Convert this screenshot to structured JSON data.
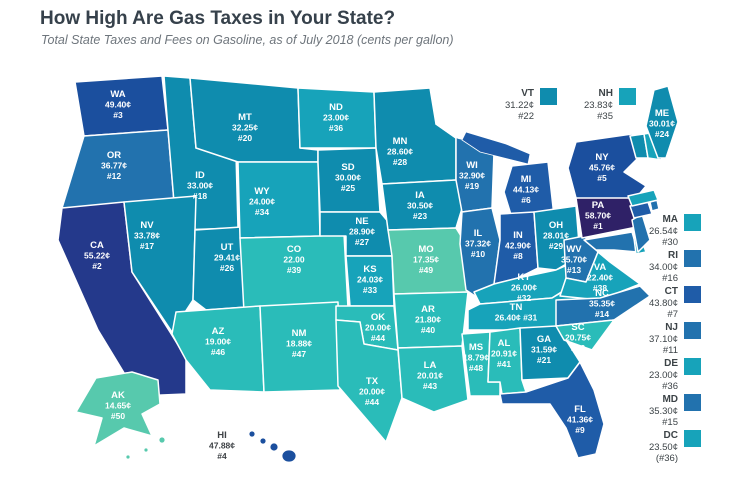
{
  "header": {
    "title": "How High Are Gas Taxes in Your State?",
    "subtitle": "Total State Taxes and Fees on Gasoline, as of July 2018 (cents per gallon)"
  },
  "map": {
    "description": "US choropleth of state gas taxes, darker blue = higher tax",
    "palette": {
      "highest": "#2f2167",
      "very_high": "#24398b",
      "high": "#1b4f9e",
      "high_mid": "#1f5ca8",
      "mid_blue": "#2272ae",
      "teal_blue": "#0f8cae",
      "teal": "#17a3ba",
      "turquoise": "#2abcb9",
      "mint": "#57c9ad"
    },
    "states": [
      {
        "abbr": "WA",
        "value": "49.40¢",
        "rank": "#3",
        "fill": "#1b4f9e",
        "placement": "map",
        "text": "light"
      },
      {
        "abbr": "OR",
        "value": "36.77¢",
        "rank": "#12",
        "fill": "#2272ae",
        "placement": "map",
        "text": "light"
      },
      {
        "abbr": "CA",
        "value": "55.22¢",
        "rank": "#2",
        "fill": "#24398b",
        "placement": "map",
        "text": "light"
      },
      {
        "abbr": "NV",
        "value": "33.78¢",
        "rank": "#17",
        "fill": "#0f8cae",
        "placement": "map",
        "text": "light"
      },
      {
        "abbr": "ID",
        "value": "33.00¢",
        "rank": "#18",
        "fill": "#0f8cae",
        "placement": "map",
        "text": "light"
      },
      {
        "abbr": "MT",
        "value": "32.25¢",
        "rank": "#20",
        "fill": "#0f8cae",
        "placement": "map",
        "text": "light"
      },
      {
        "abbr": "WY",
        "value": "24.00¢",
        "rank": "#34",
        "fill": "#17a3ba",
        "placement": "map",
        "text": "light"
      },
      {
        "abbr": "UT",
        "value": "29.41¢",
        "rank": "#26",
        "fill": "#0f8cae",
        "placement": "map",
        "text": "light"
      },
      {
        "abbr": "CO",
        "value": "22.00",
        "rank": "#39",
        "fill": "#2abcb9",
        "placement": "map",
        "text": "light"
      },
      {
        "abbr": "AZ",
        "value": "19.00¢",
        "rank": "#46",
        "fill": "#2abcb9",
        "placement": "map",
        "text": "light"
      },
      {
        "abbr": "NM",
        "value": "18.88¢",
        "rank": "#47",
        "fill": "#2abcb9",
        "placement": "map",
        "text": "light"
      },
      {
        "abbr": "AK",
        "value": "14.65¢",
        "rank": "#50",
        "fill": "#57c9ad",
        "placement": "map",
        "text": "light"
      },
      {
        "abbr": "HI",
        "value": "47.88¢",
        "rank": "#4",
        "fill": "#1b4f9e",
        "placement": "map",
        "text": "dark"
      },
      {
        "abbr": "ND",
        "value": "23.00¢",
        "rank": "#36",
        "fill": "#17a3ba",
        "placement": "map",
        "text": "light"
      },
      {
        "abbr": "SD",
        "value": "30.00¢",
        "rank": "#25",
        "fill": "#0f8cae",
        "placement": "map",
        "text": "light"
      },
      {
        "abbr": "NE",
        "value": "28.90¢",
        "rank": "#27",
        "fill": "#0f8cae",
        "placement": "map",
        "text": "light"
      },
      {
        "abbr": "KS",
        "value": "24.03¢",
        "rank": "#33",
        "fill": "#17a3ba",
        "placement": "map",
        "text": "light"
      },
      {
        "abbr": "OK",
        "value": "20.00¢",
        "rank": "#44",
        "fill": "#2abcb9",
        "placement": "map",
        "text": "light"
      },
      {
        "abbr": "TX",
        "value": "20.00¢",
        "rank": "#44",
        "fill": "#2abcb9",
        "placement": "map",
        "text": "light"
      },
      {
        "abbr": "MN",
        "value": "28.60¢",
        "rank": "#28",
        "fill": "#0f8cae",
        "placement": "map",
        "text": "light"
      },
      {
        "abbr": "IA",
        "value": "30.50¢",
        "rank": "#23",
        "fill": "#0f8cae",
        "placement": "map",
        "text": "light"
      },
      {
        "abbr": "MO",
        "value": "17.35¢",
        "rank": "#49",
        "fill": "#57c9ad",
        "placement": "map",
        "text": "light"
      },
      {
        "abbr": "AR",
        "value": "21.80¢",
        "rank": "#40",
        "fill": "#2abcb9",
        "placement": "map",
        "text": "light"
      },
      {
        "abbr": "LA",
        "value": "20.01¢",
        "rank": "#43",
        "fill": "#2abcb9",
        "placement": "map",
        "text": "light"
      },
      {
        "abbr": "WI",
        "value": "32.90¢",
        "rank": "#19",
        "fill": "#2272ae",
        "placement": "map",
        "text": "light"
      },
      {
        "abbr": "IL",
        "value": "37.32¢",
        "rank": "#10",
        "fill": "#2272ae",
        "placement": "map",
        "text": "light"
      },
      {
        "abbr": "IN",
        "value": "42.90¢",
        "rank": "#8",
        "fill": "#1f5ca8",
        "placement": "map",
        "text": "light"
      },
      {
        "abbr": "MI",
        "value": "44.13¢",
        "rank": "#6",
        "fill": "#1f5ca8",
        "placement": "map",
        "text": "light"
      },
      {
        "abbr": "OH",
        "value": "28.01¢",
        "rank": "#29",
        "fill": "#0f8cae",
        "placement": "map",
        "text": "light"
      },
      {
        "abbr": "KY",
        "value": "26.00¢",
        "rank": "#32",
        "fill": "#17a3ba",
        "placement": "map",
        "text": "light"
      },
      {
        "abbr": "TN",
        "value": "26.40¢",
        "rank": "#31",
        "fill": "#17a3ba",
        "placement": "map",
        "text": "light",
        "two_line": true
      },
      {
        "abbr": "WV",
        "value": "35.70¢",
        "rank": "#13",
        "fill": "#2272ae",
        "placement": "map",
        "text": "light"
      },
      {
        "abbr": "VA",
        "value": "22.40¢",
        "rank": "#38",
        "fill": "#17a3ba",
        "placement": "map",
        "text": "light"
      },
      {
        "abbr": "NC",
        "value": "35.35¢",
        "rank": "#14",
        "fill": "#2272ae",
        "placement": "map",
        "text": "light"
      },
      {
        "abbr": "SC",
        "value": "20.75¢",
        "rank": "#42",
        "fill": "#2abcb9",
        "placement": "map",
        "text": "light"
      },
      {
        "abbr": "GA",
        "value": "31.59¢",
        "rank": "#21",
        "fill": "#0f8cae",
        "placement": "map",
        "text": "light"
      },
      {
        "abbr": "AL",
        "value": "20.91¢",
        "rank": "#41",
        "fill": "#2abcb9",
        "placement": "map",
        "text": "light"
      },
      {
        "abbr": "MS",
        "value": "18.79¢",
        "rank": "#48",
        "fill": "#2abcb9",
        "placement": "map",
        "text": "light"
      },
      {
        "abbr": "FL",
        "value": "41.36¢",
        "rank": "#9",
        "fill": "#1f5ca8",
        "placement": "map",
        "text": "light"
      },
      {
        "abbr": "PA",
        "value": "58.70¢",
        "rank": "#1",
        "fill": "#2f2167",
        "placement": "map",
        "text": "light"
      },
      {
        "abbr": "NY",
        "value": "45.76¢",
        "rank": "#5",
        "fill": "#1b4f9e",
        "placement": "map",
        "text": "light"
      },
      {
        "abbr": "ME",
        "value": "30.01¢",
        "rank": "#24",
        "fill": "#0f8cae",
        "placement": "map",
        "text": "light"
      },
      {
        "abbr": "VT",
        "value": "31.22¢",
        "rank": "#22",
        "fill": "#0f8cae",
        "placement": "top-legend"
      },
      {
        "abbr": "NH",
        "value": "23.83¢",
        "rank": "#35",
        "fill": "#17a3ba",
        "placement": "top-legend"
      },
      {
        "abbr": "MA",
        "value": "26.54¢",
        "rank": "#30",
        "fill": "#17a3ba",
        "placement": "right-legend"
      },
      {
        "abbr": "RI",
        "value": "34.00¢",
        "rank": "#16",
        "fill": "#2272ae",
        "placement": "right-legend"
      },
      {
        "abbr": "CT",
        "value": "43.80¢",
        "rank": "#7",
        "fill": "#1f5ca8",
        "placement": "right-legend"
      },
      {
        "abbr": "NJ",
        "value": "37.10¢",
        "rank": "#11",
        "fill": "#2272ae",
        "placement": "right-legend"
      },
      {
        "abbr": "DE",
        "value": "23.00¢",
        "rank": "#36",
        "fill": "#17a3ba",
        "placement": "right-legend"
      },
      {
        "abbr": "MD",
        "value": "35.30¢",
        "rank": "#15",
        "fill": "#2272ae",
        "placement": "right-legend"
      },
      {
        "abbr": "DC",
        "value": "23.50¢",
        "rank": "(#36)",
        "fill": "#17a3ba",
        "placement": "right-legend"
      }
    ]
  }
}
